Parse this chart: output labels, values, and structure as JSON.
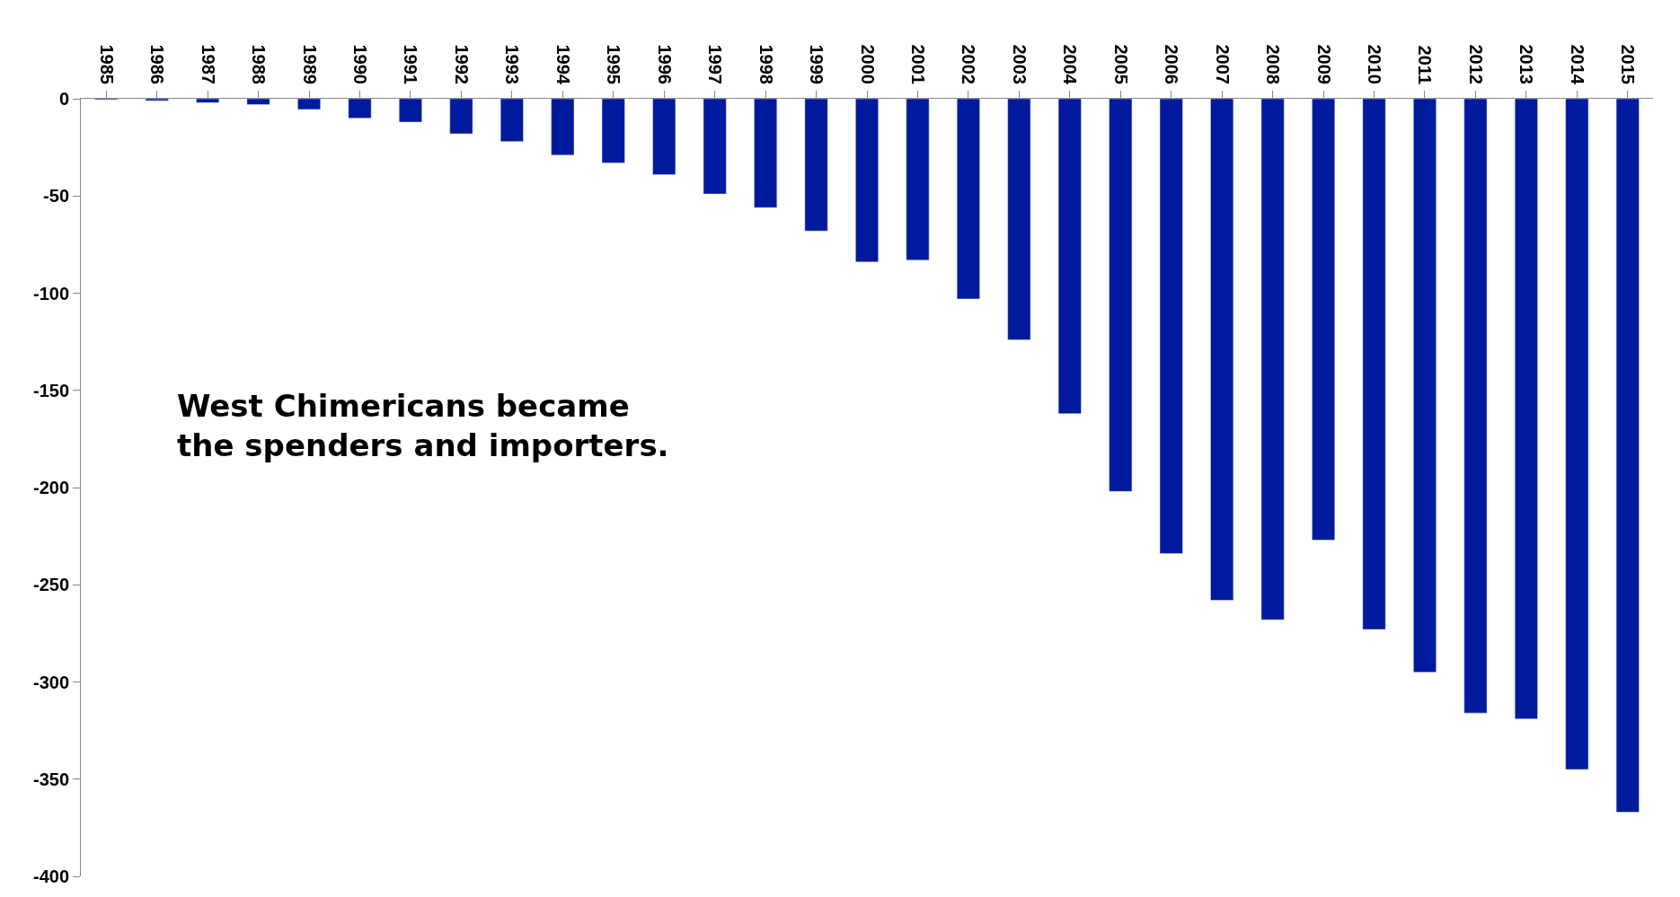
{
  "chart_data": {
    "type": "bar",
    "categories": [
      "1985",
      "1986",
      "1987",
      "1988",
      "1989",
      "1990",
      "1991",
      "1992",
      "1993",
      "1994",
      "1995",
      "1996",
      "1997",
      "1998",
      "1999",
      "2000",
      "2001",
      "2002",
      "2003",
      "2004",
      "2005",
      "2006",
      "2007",
      "2008",
      "2009",
      "2010",
      "2011",
      "2012",
      "2013",
      "2014",
      "2015"
    ],
    "values": [
      -0.5,
      -1,
      -2,
      -3,
      -5.5,
      -10,
      -12,
      -18,
      -22,
      -29,
      -33,
      -39,
      -49,
      -56,
      -68,
      -84,
      -83,
      -103,
      -124,
      -162,
      -202,
      -234,
      -258,
      -268,
      -227,
      -273,
      -295,
      -316,
      -319,
      -345,
      -367
    ],
    "color": "#001a9e",
    "ylim": [
      -400,
      0
    ],
    "yticks": [
      0,
      -50,
      -100,
      -150,
      -200,
      -250,
      -300,
      -350,
      -400
    ],
    "annotations": [
      "West Chimericans became\nthe spenders and importers."
    ]
  }
}
